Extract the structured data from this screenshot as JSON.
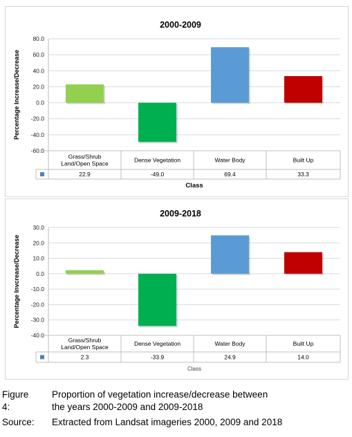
{
  "colors": {
    "grass_shrub": "#92d050",
    "dense_vegetation": "#00b050",
    "water_body": "#5b9bd5",
    "built_up": "#c00000",
    "legend_key": "#4f81bd",
    "grid": "#d9d9d9"
  },
  "chart_data": [
    {
      "type": "bar",
      "title": "2000-2009",
      "ylabel": "Percentage Increase/Decrease",
      "xlabel": "Class",
      "categories": [
        "Grass/Shrub Land/Open Space",
        "Dense Vegetation",
        "Water Body",
        "Built Up"
      ],
      "category_lines": [
        [
          "Grass/Shrub",
          "Land/Open Space"
        ],
        [
          "Dense Vegetation"
        ],
        [
          "Water Body"
        ],
        [
          "Built Up"
        ]
      ],
      "values": [
        22.9,
        -49.0,
        69.4,
        33.3
      ],
      "value_labels": [
        "22.9",
        "-49.0",
        "69.4",
        "33.3"
      ],
      "ylim": [
        -60,
        80
      ],
      "yticks": [
        -60,
        -40,
        -20,
        0,
        20,
        40,
        60,
        80
      ],
      "ytick_labels": [
        "-60.0",
        "-40.0",
        "-20.0",
        "0.0",
        "20.0",
        "40.0",
        "60.0",
        "80.0"
      ],
      "grid": true,
      "legend": "data table below plot"
    },
    {
      "type": "bar",
      "title": "2009-2018",
      "ylabel": "Percentage Invcrease/Decrease",
      "xlabel": "Class",
      "categories": [
        "Grass/Shrub Land/Open Space",
        "Dense Vegetation",
        "Water Body",
        "Built Up"
      ],
      "category_lines": [
        [
          "Grass/Shrub",
          "Land/Open Space"
        ],
        [
          "Dense Vegetation"
        ],
        [
          "Water Body"
        ],
        [
          "Built Up"
        ]
      ],
      "values": [
        2.3,
        -33.9,
        24.9,
        14.0
      ],
      "value_labels": [
        "2.3",
        "-33.9",
        "24.9",
        "14.0"
      ],
      "ylim": [
        -40,
        30
      ],
      "yticks": [
        -40,
        -30,
        -20,
        -10,
        0,
        10,
        20,
        30
      ],
      "ytick_labels": [
        "-40.0",
        "-30.0",
        "-20.0",
        "-10.0",
        "0.0",
        "10.0",
        "20.0",
        "30.0"
      ],
      "grid": true,
      "legend": "data table below plot"
    }
  ],
  "captions": {
    "figure_label": "Figure 4:",
    "figure_line1": "Proportion of vegetation increase/decrease between",
    "figure_line2": "the years 2000-2009 and 2009-2018",
    "source_label": "Source:",
    "source_text": "Extracted from Landsat imageries 2000, 2009 and 2018"
  }
}
